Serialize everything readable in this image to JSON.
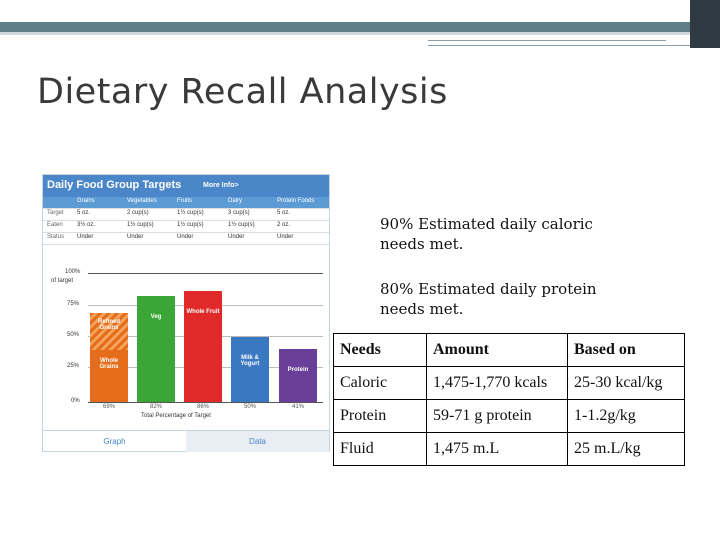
{
  "title": "Dietary Recall Analysis",
  "food_panel": {
    "heading": "Daily Food Group Targets",
    "more_info": "More Info>",
    "columns": [
      "Grains",
      "Vegetables",
      "Fruits",
      "Dairy",
      "Protein Foods"
    ],
    "rows": [
      {
        "label": "Target",
        "values": [
          "5 oz.",
          "2 cup(s)",
          "1½ cup(s)",
          "3 cup(s)",
          "5 oz."
        ]
      },
      {
        "label": "Eaten",
        "values": [
          "3½ oz.",
          "1½ cup(s)",
          "1½ cup(s)",
          "1½ cup(s)",
          "2 oz."
        ]
      },
      {
        "label": "Status",
        "values": [
          "Under",
          "Under",
          "Under",
          "Under",
          "Under"
        ]
      }
    ],
    "y_labels": [
      "100%",
      "of target",
      "75%",
      "50%",
      "25%",
      "0%"
    ],
    "bars": [
      {
        "label": "Whole Grains",
        "label2": "Refined Grains",
        "pct": "69%",
        "color": "#e46c1a"
      },
      {
        "label": "Veg",
        "pct": "82%",
        "color": "#3aa635"
      },
      {
        "label": "Whole Fruit",
        "pct": "86%",
        "color": "#e02a2a"
      },
      {
        "label": "Milk & Yogurt",
        "pct": "50%",
        "color": "#3a78c2"
      },
      {
        "label": "Protein",
        "pct": "41%",
        "color": "#6a3f99"
      }
    ],
    "x_caption": "Total Percentage of Target",
    "tabs": [
      "Graph",
      "Data"
    ]
  },
  "statements": [
    "90% Estimated daily caloric needs met.",
    "80% Estimated daily protein needs met."
  ],
  "needs_table": {
    "headers": [
      "Needs",
      "Amount",
      "Based on"
    ],
    "rows": [
      [
        "Caloric",
        "1,475-1,770 kcals",
        "25-30 kcal/kg"
      ],
      [
        "Protein",
        "59-71 g protein",
        "1-1.2g/kg"
      ],
      [
        "Fluid",
        "1,475 m.L",
        "25 m.L/kg"
      ]
    ]
  }
}
